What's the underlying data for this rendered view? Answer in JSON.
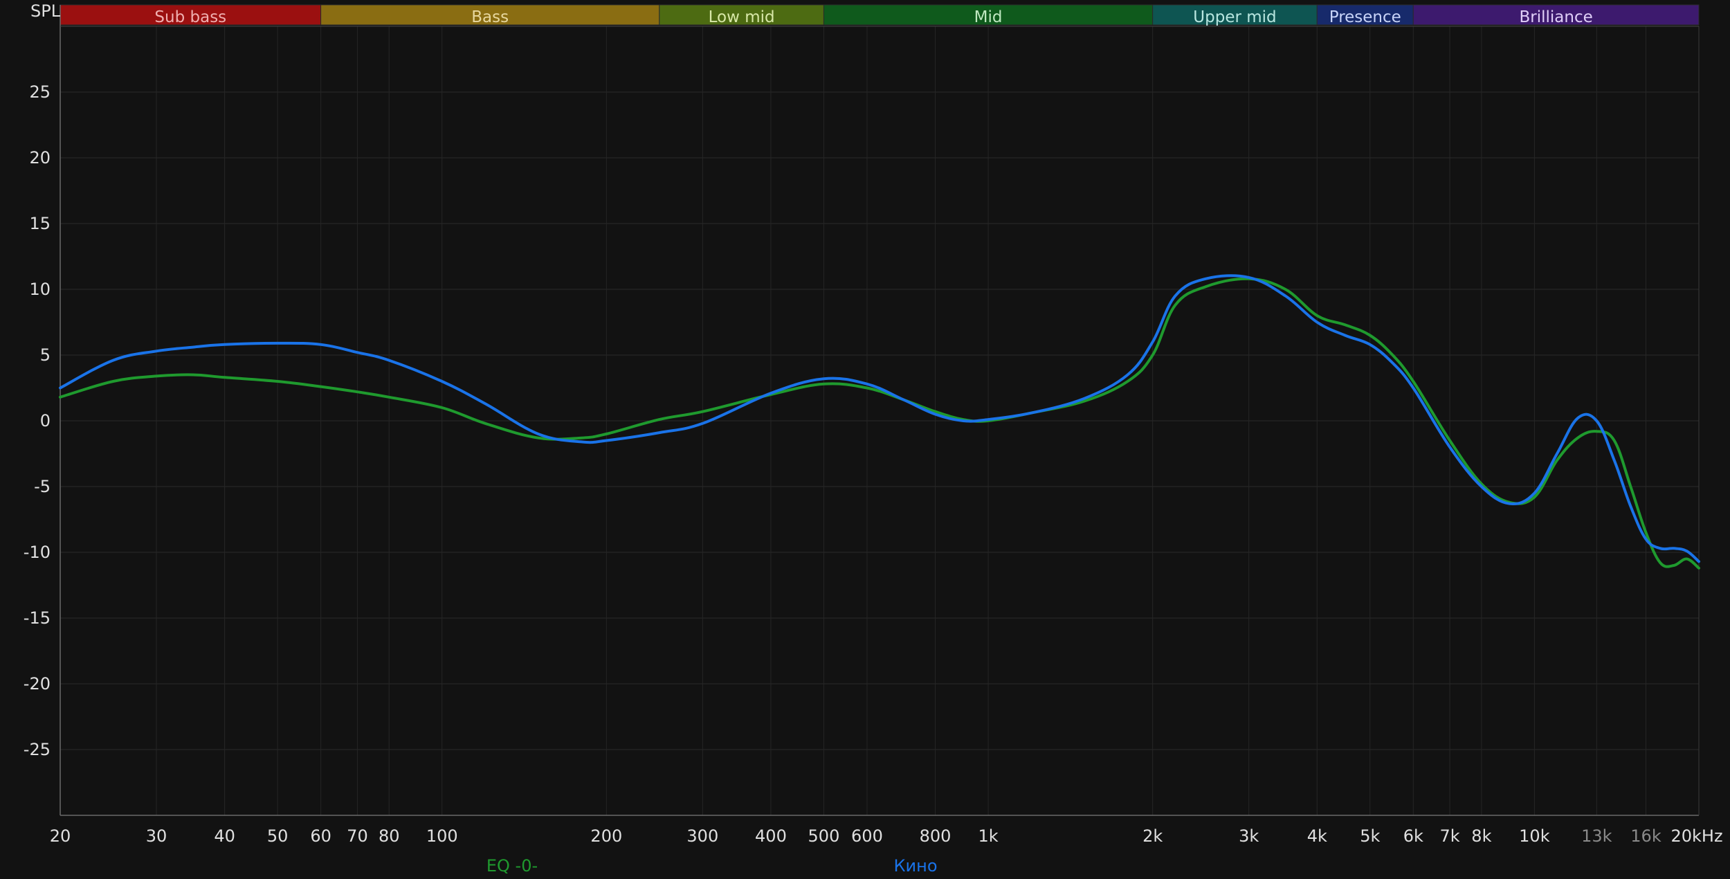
{
  "chart_data": {
    "type": "line",
    "ylabel": "SPL",
    "x_scale": "log",
    "xlim": [
      20,
      20000
    ],
    "ylim": [
      -30,
      30
    ],
    "grid": true,
    "frequency_bands": [
      {
        "name": "Sub bass",
        "range": [
          20,
          60
        ],
        "color": "#9b1010",
        "text_color": "#f0b0b0"
      },
      {
        "name": "Bass",
        "range": [
          60,
          250
        ],
        "color": "#8a6d12",
        "text_color": "#e8d8a0"
      },
      {
        "name": "Low mid",
        "range": [
          250,
          500
        ],
        "color": "#4d6b12",
        "text_color": "#d8e8a8"
      },
      {
        "name": "Mid",
        "range": [
          500,
          2000
        ],
        "color": "#0f5a1c",
        "text_color": "#bfe8c0"
      },
      {
        "name": "Upper mid",
        "range": [
          2000,
          4000
        ],
        "color": "#0e5552",
        "text_color": "#b8e6e0"
      },
      {
        "name": "Presence",
        "range": [
          4000,
          6000
        ],
        "color": "#172a6b",
        "text_color": "#c8d4f8"
      },
      {
        "name": "Brilliance",
        "range": [
          6000,
          20000
        ],
        "color": "#3d1a6e",
        "text_color": "#e0cff8"
      }
    ],
    "y_ticks": [
      25,
      20,
      15,
      10,
      5,
      0,
      -5,
      -10,
      -15,
      -20,
      -25
    ],
    "y_tick_labels": [
      "25",
      "20",
      "15",
      "10",
      "5",
      "0",
      "-5",
      "-10",
      "-15",
      "-20",
      "-25"
    ],
    "x_ticks": [
      20,
      30,
      40,
      50,
      60,
      70,
      80,
      100,
      200,
      300,
      400,
      500,
      600,
      800,
      1000,
      2000,
      3000,
      4000,
      5000,
      6000,
      7000,
      8000,
      10000,
      13000,
      16000,
      20000
    ],
    "x_tick_labels": [
      "20",
      "30",
      "40",
      "50",
      "60",
      "70",
      "80",
      "100",
      "200",
      "300",
      "400",
      "500",
      "600",
      "800",
      "1k",
      "2k",
      "3k",
      "4k",
      "5k",
      "6k",
      "7k",
      "8k",
      "10k",
      "13k",
      "16k",
      "20kHz"
    ],
    "x_tick_dim": [
      false,
      false,
      false,
      false,
      false,
      false,
      false,
      false,
      false,
      false,
      false,
      false,
      false,
      false,
      false,
      false,
      false,
      false,
      false,
      false,
      false,
      false,
      false,
      true,
      true,
      false
    ],
    "series": [
      {
        "name": "EQ -0-",
        "color": "#1f9a2e",
        "x": [
          20,
          25,
          30,
          35,
          40,
          50,
          60,
          70,
          80,
          100,
          120,
          150,
          180,
          200,
          250,
          300,
          400,
          500,
          600,
          700,
          800,
          900,
          1000,
          1200,
          1500,
          1800,
          2000,
          2200,
          2500,
          3000,
          3500,
          4000,
          4500,
          5000,
          5500,
          6000,
          7000,
          8000,
          9000,
          10000,
          11000,
          12000,
          13000,
          14000,
          15000,
          16000,
          17000,
          18000,
          19000,
          20000
        ],
        "y": [
          1.8,
          3.0,
          3.4,
          3.5,
          3.3,
          3.0,
          2.6,
          2.2,
          1.8,
          1.0,
          -0.2,
          -1.3,
          -1.3,
          -1.0,
          0.1,
          0.7,
          2.0,
          2.8,
          2.5,
          1.6,
          0.7,
          0.1,
          0.0,
          0.6,
          1.5,
          3.0,
          5.0,
          8.8,
          10.2,
          10.8,
          10.0,
          8.0,
          7.3,
          6.5,
          5.0,
          3.0,
          -1.5,
          -4.8,
          -6.2,
          -5.8,
          -3.0,
          -1.3,
          -0.8,
          -1.5,
          -5.0,
          -8.5,
          -10.8,
          -11.0,
          -10.5,
          -11.2
        ]
      },
      {
        "name": "Кино",
        "color": "#1a73e8",
        "x": [
          20,
          25,
          30,
          35,
          40,
          50,
          60,
          70,
          80,
          100,
          120,
          150,
          180,
          200,
          250,
          300,
          400,
          500,
          600,
          700,
          800,
          900,
          1000,
          1200,
          1500,
          1800,
          2000,
          2200,
          2500,
          3000,
          3500,
          4000,
          4500,
          5000,
          5500,
          6000,
          7000,
          8000,
          9000,
          10000,
          11000,
          12000,
          13000,
          14000,
          15000,
          16000,
          17000,
          18000,
          19000,
          20000
        ],
        "y": [
          2.5,
          4.6,
          5.3,
          5.6,
          5.8,
          5.9,
          5.8,
          5.2,
          4.6,
          3.0,
          1.3,
          -1.0,
          -1.6,
          -1.5,
          -0.9,
          -0.2,
          2.1,
          3.2,
          2.8,
          1.6,
          0.5,
          0.0,
          0.1,
          0.6,
          1.7,
          3.5,
          6.0,
          9.5,
          10.8,
          10.9,
          9.5,
          7.5,
          6.5,
          5.8,
          4.4,
          2.5,
          -2.0,
          -5.0,
          -6.3,
          -5.5,
          -2.5,
          0.2,
          0.0,
          -3.0,
          -6.5,
          -9.0,
          -9.7,
          -9.7,
          -9.9,
          -10.7
        ]
      }
    ]
  }
}
